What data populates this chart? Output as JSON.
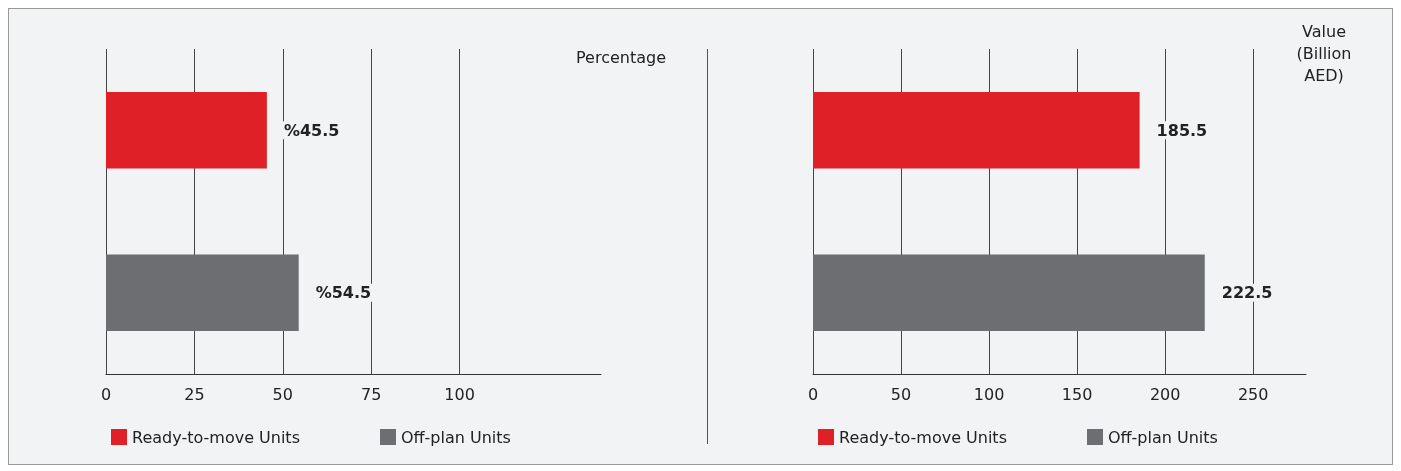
{
  "chart_data": [
    {
      "type": "bar",
      "orientation": "horizontal",
      "xlabel": "Percentage",
      "categories": [
        null,
        null
      ],
      "xlim": [
        0,
        140
      ],
      "xticks": [
        0,
        25,
        50,
        75,
        100
      ],
      "grid": "x",
      "tick_labels": "x",
      "legend": "bottom left",
      "series": [
        {
          "name": "Ready-to-move Units",
          "color": "#e02027",
          "values": [
            45.5,
            null
          ],
          "value_labels": [
            "%45.5",
            null
          ]
        },
        {
          "name": "Off-plan Units",
          "color": "#6d6e71",
          "values": [
            null,
            54.5
          ],
          "value_labels": [
            null,
            "%54.5"
          ]
        }
      ]
    },
    {
      "type": "bar",
      "orientation": "horizontal",
      "xlabel": "Value (Billion AED)",
      "categories": [
        null,
        null
      ],
      "xlim": [
        0,
        280
      ],
      "xticks": [
        0,
        50,
        100,
        150,
        200,
        250
      ],
      "grid": "x",
      "tick_labels": "x",
      "legend": "bottom left",
      "data_labels": true,
      "series": [
        {
          "name": "Ready-to-move Units",
          "color": "#e02027",
          "values": [
            185.5,
            null
          ]
        },
        {
          "name": "Off-plan Units",
          "color": "#6d6e71",
          "values": [
            null,
            222.5
          ]
        }
      ]
    }
  ]
}
